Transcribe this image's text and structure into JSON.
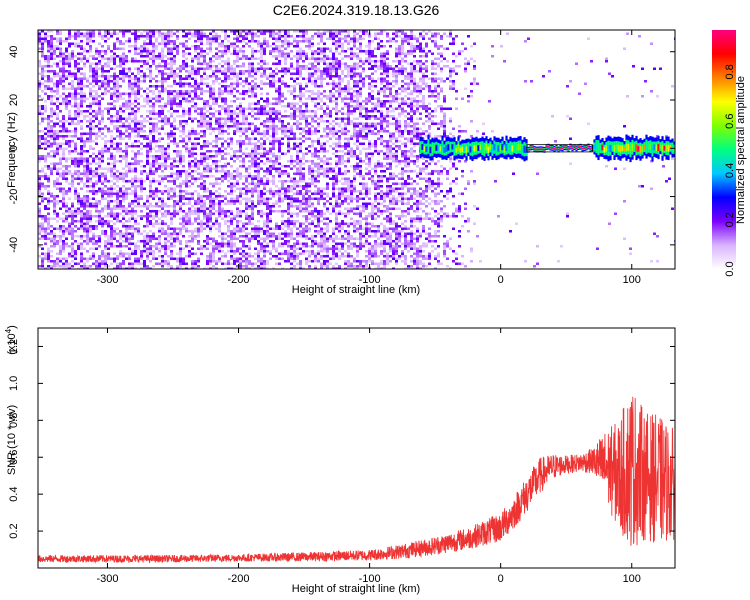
{
  "figure_title": "C2E6.2024.319.18.13.G26",
  "chart_data": [
    {
      "type": "heatmap",
      "title": "C2E6.2024.319.18.13.G26",
      "xlabel": "Height of straight line (km)",
      "ylabel": "Frequency (Hz)",
      "xlim": [
        -353,
        133
      ],
      "ylim": [
        -50,
        49
      ],
      "x_ticks": [
        -300,
        -200,
        -100,
        0,
        100
      ],
      "y_ticks": [
        -40,
        -20,
        0,
        20,
        40
      ],
      "colorbar": {
        "label": "Normalized spectral amplitude",
        "range": [
          0.0,
          0.97
        ],
        "ticks": [
          0.0,
          0.2,
          0.4,
          0.6,
          0.8
        ],
        "colormap": [
          "#ffffff",
          "#d9b3ff",
          "#7b00ff",
          "#0000ff",
          "#00c8ff",
          "#00ff80",
          "#80ff00",
          "#ffff00",
          "#ff8000",
          "#ff0000",
          "#ff0080"
        ]
      },
      "regions": [
        {
          "x": [
            -353,
            -60
          ],
          "frequency": [
            -50,
            49
          ],
          "amplitude_range": [
            0.0,
            0.2
          ],
          "description_color": "#7b00ff"
        },
        {
          "x": [
            -60,
            20
          ],
          "frequency": [
            -4,
            4
          ],
          "amplitude_range": [
            0.2,
            0.7
          ]
        },
        {
          "x": [
            20,
            70
          ],
          "frequency": [
            -1.5,
            1.5
          ],
          "amplitude_range": [
            0.85,
            0.97
          ]
        },
        {
          "x": [
            70,
            133
          ],
          "frequency": [
            -5,
            5
          ],
          "amplitude_range": [
            0.3,
            0.95
          ]
        }
      ],
      "grid": false
    },
    {
      "type": "line",
      "xlabel": "Height of straight line (km)",
      "ylabel": "SNR (10 * v/v)",
      "y_scale_label": "(x10",
      "y_scale_exponent": "4",
      "y_scale_suffix": ")",
      "xlim": [
        -353,
        133
      ],
      "ylim": [
        0.0,
        1.3
      ],
      "x_ticks": [
        -300,
        -200,
        -100,
        0,
        100
      ],
      "y_ticks": [
        0.2,
        0.4,
        0.6,
        0.8,
        1.0,
        1.2
      ],
      "series": [
        {
          "color": "#ee3333",
          "x": [
            -353,
            -300,
            -250,
            -200,
            -150,
            -100,
            -75,
            -50,
            -25,
            0,
            10,
            20,
            30,
            40,
            50,
            60,
            70,
            80,
            90,
            100,
            110,
            120,
            133
          ],
          "mean": [
            0.05,
            0.05,
            0.05,
            0.055,
            0.06,
            0.07,
            0.09,
            0.12,
            0.16,
            0.22,
            0.3,
            0.4,
            0.5,
            0.55,
            0.56,
            0.57,
            0.58,
            0.55,
            0.5,
            0.55,
            0.5,
            0.48,
            0.45
          ],
          "spread": [
            0.02,
            0.02,
            0.02,
            0.02,
            0.025,
            0.03,
            0.04,
            0.05,
            0.06,
            0.08,
            0.09,
            0.1,
            0.1,
            0.07,
            0.05,
            0.05,
            0.07,
            0.2,
            0.3,
            0.45,
            0.35,
            0.35,
            0.3
          ]
        }
      ],
      "grid": false
    }
  ]
}
